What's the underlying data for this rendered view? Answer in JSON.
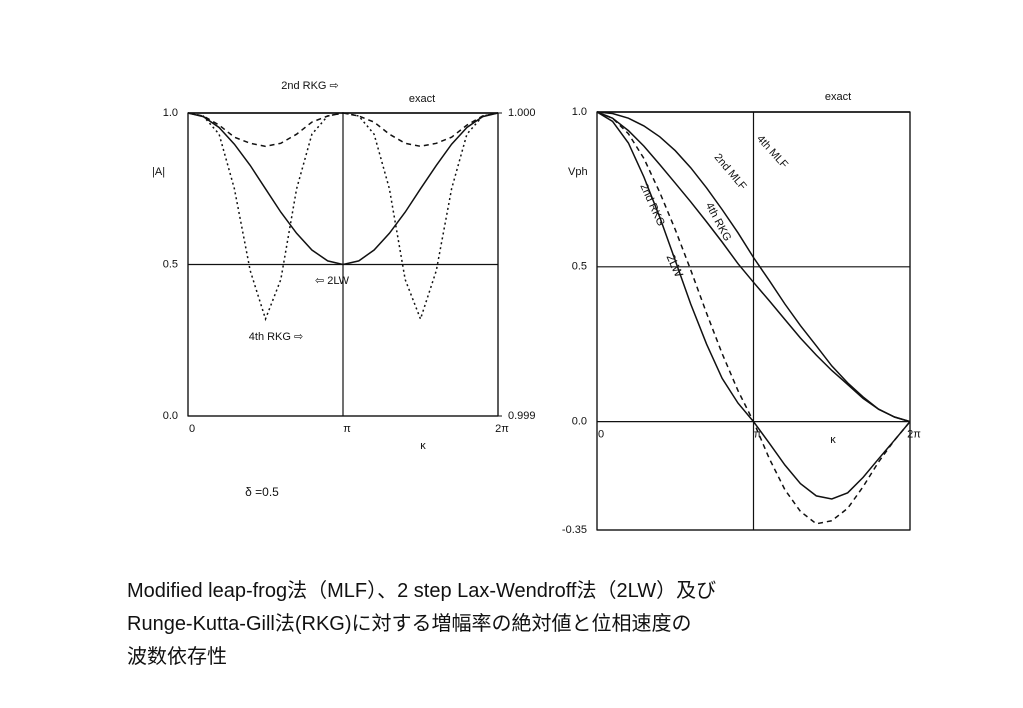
{
  "chart_data": [
    {
      "type": "line",
      "ylabel": "|A|",
      "xlabel": "κ",
      "x": [
        0,
        0.31,
        0.63,
        0.94,
        1.26,
        1.57,
        1.88,
        2.2,
        2.51,
        2.83,
        3.14,
        3.46,
        3.77,
        4.08,
        4.4,
        4.71,
        5.03,
        5.34,
        5.65,
        5.97,
        6.28
      ],
      "xlim": [
        0,
        6.28
      ],
      "xticks": [
        0,
        {
          "value": 3.14,
          "label": "π"
        },
        {
          "value": 6.28,
          "label": "2π"
        }
      ],
      "ylim": [
        0,
        1
      ],
      "yticks": [
        {
          "value": 0,
          "label": "0.0"
        },
        0.5,
        {
          "value": 1,
          "label": "1.0"
        }
      ],
      "y2lim": [
        0.999,
        1
      ],
      "y2ticks": [
        {
          "value": 0.999,
          "label": "0.999"
        },
        {
          "value": 1,
          "label": "1.000"
        }
      ],
      "series": [
        {
          "name": "exact",
          "color": "#111111",
          "dash": "solid",
          "values": [
            1,
            1,
            1,
            1,
            1,
            1,
            1,
            1,
            1,
            1,
            1,
            1,
            1,
            1,
            1,
            1,
            1,
            1,
            1,
            1,
            1
          ]
        },
        {
          "name": "⇦ 2LW",
          "color": "#111111",
          "dash": "solid",
          "values": [
            1,
            0.988,
            0.952,
            0.897,
            0.827,
            0.75,
            0.673,
            0.603,
            0.548,
            0.512,
            0.5,
            0.512,
            0.548,
            0.603,
            0.673,
            0.75,
            0.827,
            0.897,
            0.952,
            0.988,
            1
          ]
        },
        {
          "name": "2nd RKG ⇨",
          "color": "#111111",
          "dash": "dashed",
          "axis": "y2",
          "values": [
            1,
            0.99999,
            0.99996,
            0.99992,
            0.9999,
            0.99989,
            0.9999,
            0.99993,
            0.99997,
            0.99999,
            1,
            0.99999,
            0.99997,
            0.99993,
            0.9999,
            0.99989,
            0.9999,
            0.99992,
            0.99996,
            0.99999,
            1
          ]
        },
        {
          "name": "4th RKG ⇨",
          "color": "#111111",
          "dash": "dotted",
          "values": [
            1,
            0.99,
            0.93,
            0.75,
            0.48,
            0.32,
            0.45,
            0.75,
            0.93,
            0.99,
            1,
            0.99,
            0.93,
            0.75,
            0.45,
            0.32,
            0.48,
            0.75,
            0.93,
            0.99,
            1
          ]
        }
      ],
      "annotations": [
        "δ =0.5"
      ]
    },
    {
      "type": "line",
      "ylabel": "Vph",
      "xlabel": "κ",
      "x": [
        0,
        0.31,
        0.63,
        0.94,
        1.26,
        1.57,
        1.88,
        2.2,
        2.51,
        2.83,
        3.14,
        3.46,
        3.77,
        4.08,
        4.4,
        4.71,
        5.03,
        5.34,
        5.65,
        5.97,
        6.28
      ],
      "xlim": [
        0,
        6.28
      ],
      "xticks": [
        0,
        {
          "value": 3.14,
          "label": "π"
        },
        {
          "value": 6.28,
          "label": "2π"
        }
      ],
      "ylim": [
        -0.35,
        1
      ],
      "yticks": [
        -0.35,
        {
          "value": 0,
          "label": "0.0"
        },
        0.5,
        {
          "value": 1,
          "label": "1.0"
        }
      ],
      "series": [
        {
          "name": "exact",
          "color": "#111111",
          "dash": "solid",
          "values": [
            1,
            1,
            1,
            1,
            1,
            1,
            1,
            1,
            1,
            1,
            1,
            1,
            1,
            1,
            1,
            1,
            1,
            1,
            1,
            1,
            1
          ]
        },
        {
          "name": "4th MLF",
          "color": "#111111",
          "dash": "solid",
          "values": [
            1,
            0.995,
            0.98,
            0.955,
            0.92,
            0.875,
            0.82,
            0.755,
            0.685,
            0.61,
            0.53,
            0.455,
            0.38,
            0.31,
            0.245,
            0.18,
            0.125,
            0.08,
            0.04,
            0.015,
            0
          ]
        },
        {
          "name": "2nd MLF",
          "color": "#111111",
          "dash": "dashed",
          "values": [
            1,
            0.98,
            0.93,
            0.85,
            0.74,
            0.62,
            0.49,
            0.35,
            0.22,
            0.1,
            0,
            -0.12,
            -0.22,
            -0.29,
            -0.33,
            -0.32,
            -0.28,
            -0.21,
            -0.13,
            -0.06,
            0
          ]
        },
        {
          "name": "4th RKG",
          "color": "#111111",
          "dash": "solid",
          "values": [
            1,
            0.98,
            0.94,
            0.89,
            0.83,
            0.77,
            0.71,
            0.645,
            0.58,
            0.51,
            0.45,
            0.39,
            0.33,
            0.27,
            0.215,
            0.165,
            0.12,
            0.075,
            0.04,
            0.015,
            0
          ]
        },
        {
          "name": "2nd RKG",
          "color": "#111111",
          "dash": "solid",
          "values": [
            1,
            0.97,
            0.9,
            0.79,
            0.66,
            0.52,
            0.38,
            0.25,
            0.14,
            0.06,
            0,
            -0.07,
            -0.14,
            -0.2,
            -0.24,
            -0.25,
            -0.23,
            -0.18,
            -0.12,
            -0.06,
            0
          ]
        }
      ],
      "annotations": [
        "2LW"
      ]
    }
  ],
  "caption": [
    "Modified leap-frog法（MLF）、2 step Lax-Wendroff法（2LW）及び",
    "Runge-Kutta-Gill法(RKG)に対する増幅率の絶対値と位相速度の",
    "波数依存性"
  ]
}
